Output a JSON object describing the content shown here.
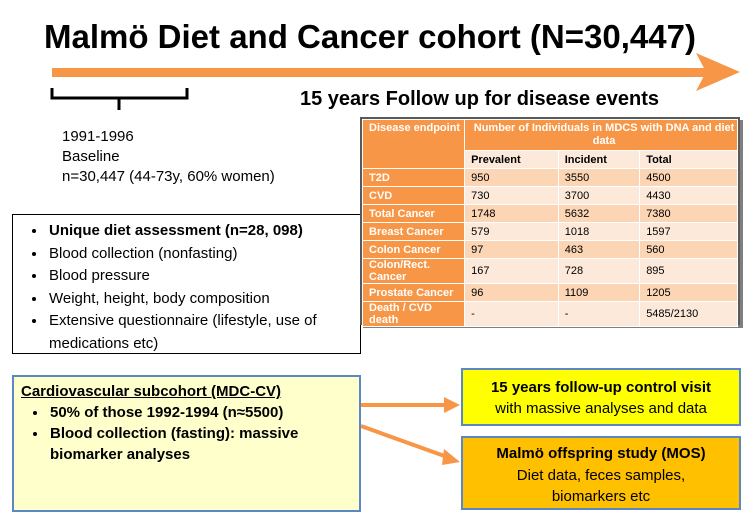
{
  "title": "Malmö Diet and Cancer cohort (N=30,447)",
  "subtitle": "15 years Follow up for disease events",
  "baseline": {
    "years": "1991-1996",
    "label": "Baseline",
    "detail": "n=30,447 (44-73y, 60% women)"
  },
  "diet_box": {
    "items": [
      "Unique diet assessment (n=28, 098)",
      "Blood collection (nonfasting)",
      "Blood pressure",
      "Weight, height, body composition",
      "Extensive questionnaire (lifestyle, use of medications etc)"
    ]
  },
  "cv_box": {
    "title": "Cardiovascular subcohort (MDC-CV)",
    "items": [
      "50% of those 1992-1994 (n≈5500)",
      "Blood collection (fasting): massive biomarker analyses"
    ]
  },
  "followup_box": {
    "title": "15 years follow-up control visit",
    "text": "with massive analyses and data"
  },
  "mos_box": {
    "title": "Malmö offspring study (MOS)",
    "line1": "Diet data, feces samples,",
    "line2": "biomarkers etc"
  },
  "table": {
    "header_endpoint": "Disease endpoint",
    "header_main": "Number of Individuals in MDCS with DNA and diet data",
    "columns": [
      "Prevalent",
      "Incident",
      "Total"
    ],
    "rows": [
      {
        "endpoint": "T2D",
        "prevalent": "950",
        "incident": "3550",
        "total": "4500"
      },
      {
        "endpoint": "CVD",
        "prevalent": "730",
        "incident": "3700",
        "total": "4430"
      },
      {
        "endpoint": "Total Cancer",
        "prevalent": "1748",
        "incident": "5632",
        "total": "7380"
      },
      {
        "endpoint": "Breast Cancer",
        "prevalent": "579",
        "incident": "1018",
        "total": "1597"
      },
      {
        "endpoint": "Colon Cancer",
        "prevalent": "97",
        "incident": "463",
        "total": "560"
      },
      {
        "endpoint": "Colon/Rect. Cancer",
        "prevalent": "167",
        "incident": "728",
        "total": "895"
      },
      {
        "endpoint": "Prostate Cancer",
        "prevalent": "96",
        "incident": "1109",
        "total": "1205"
      },
      {
        "endpoint": "Death / CVD death",
        "prevalent": "-",
        "incident": "-",
        "total": "5485/2130"
      }
    ]
  },
  "colors": {
    "arrow": "#f79646",
    "table_header": "#f79646",
    "box_border": "#5b87c5",
    "cv_fill": "#ffffcc",
    "followup_fill": "#ffff00",
    "mos_fill": "#ffc000"
  }
}
